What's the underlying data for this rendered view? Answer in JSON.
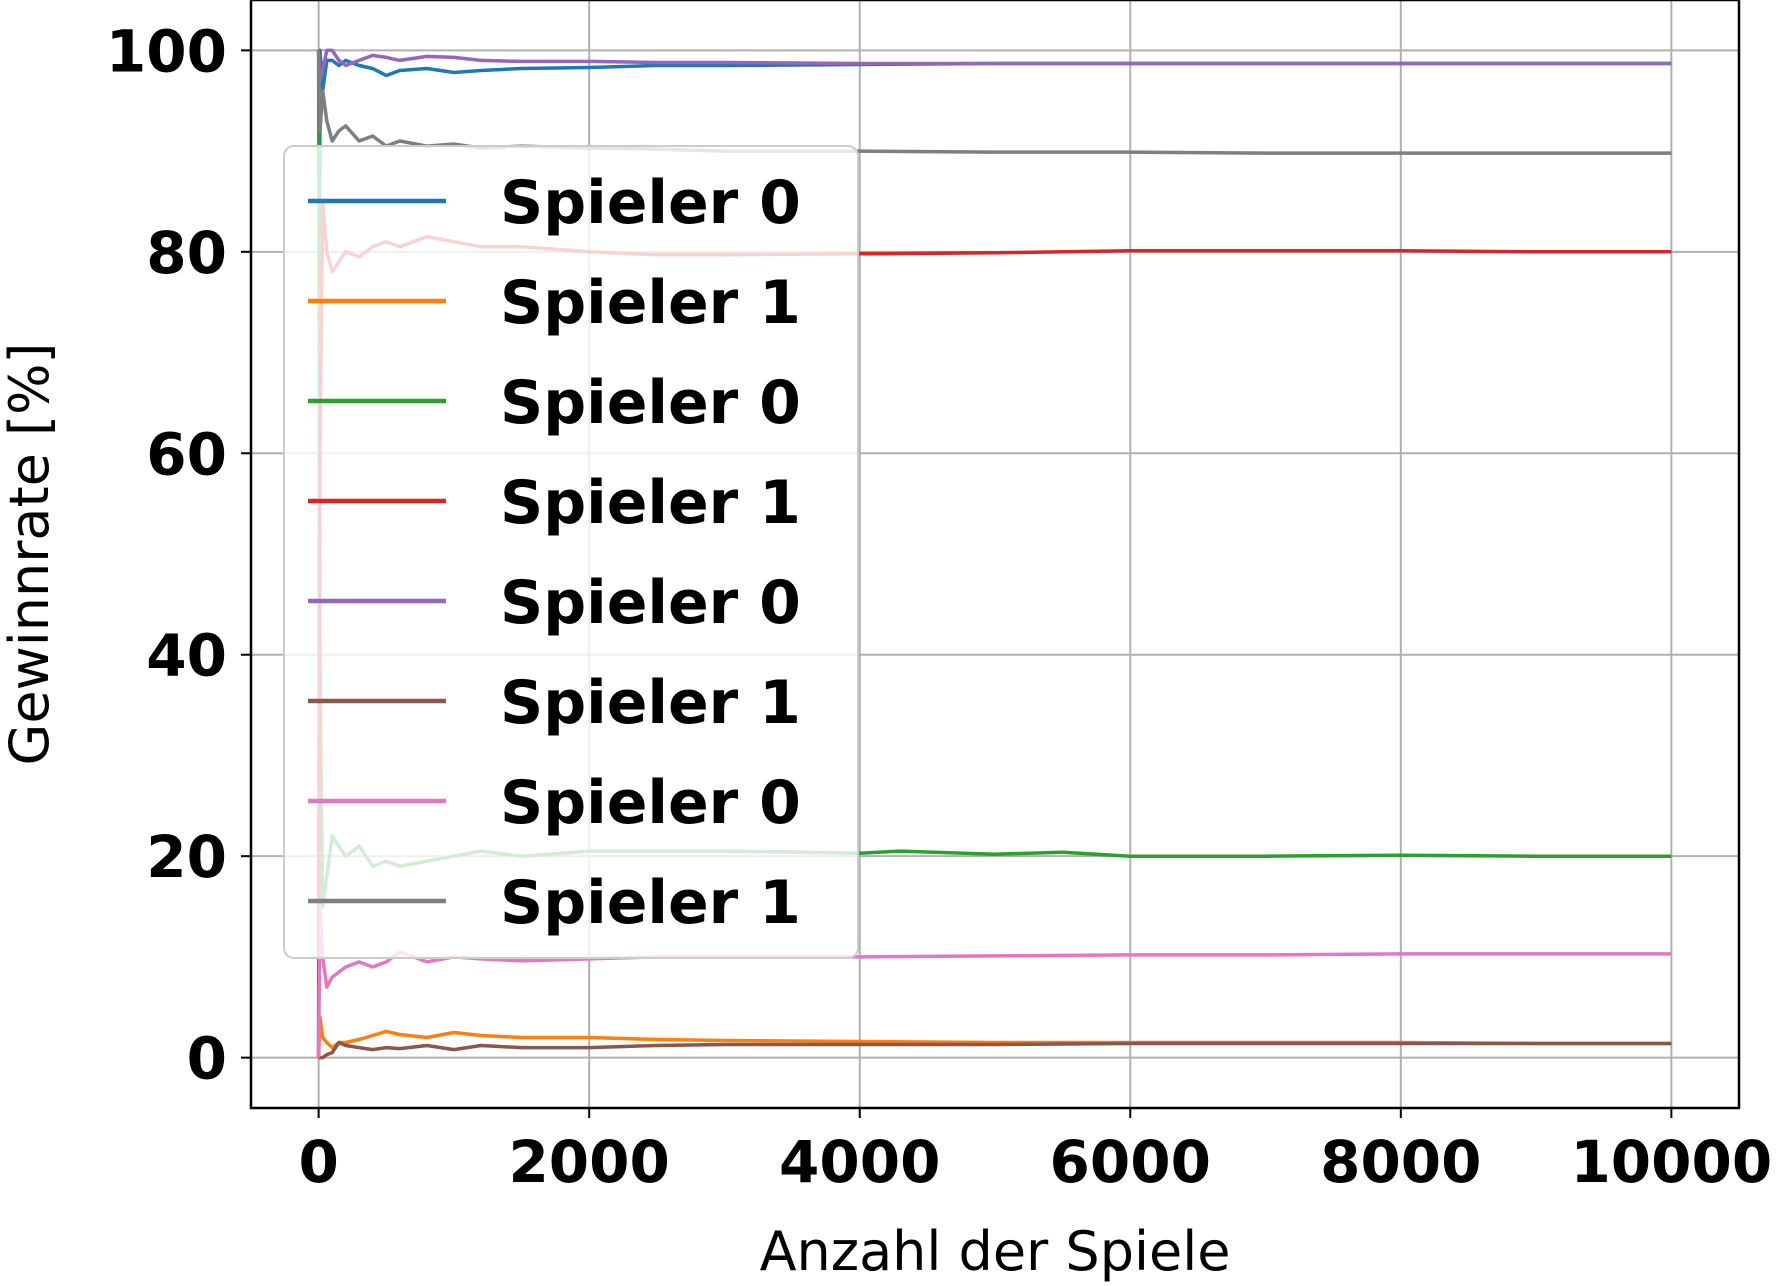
{
  "chart_data": {
    "type": "line",
    "title": "",
    "xlabel": "Anzahl der Spiele",
    "ylabel": "Gewinnrate [%]",
    "xlim": [
      -500,
      10500
    ],
    "ylim": [
      -5,
      105
    ],
    "xticks": [
      0,
      2000,
      4000,
      6000,
      8000,
      10000
    ],
    "xtick_labels": [
      "0",
      "2000",
      "4000",
      "6000",
      "8000",
      "10000"
    ],
    "yticks": [
      0,
      20,
      40,
      60,
      80,
      100
    ],
    "ytick_labels": [
      "0",
      "20",
      "40",
      "60",
      "80",
      "100"
    ],
    "grid": true,
    "legend_position": "upper-left",
    "series": [
      {
        "name": "Spieler 0",
        "color": "#1f77b4",
        "x": [
          0,
          10,
          30,
          60,
          100,
          150,
          200,
          300,
          400,
          500,
          600,
          800,
          1000,
          1200,
          1500,
          2000,
          2500,
          3000,
          4000,
          5000,
          6000,
          7000,
          8000,
          9000,
          10000
        ],
        "y": [
          0,
          100,
          96,
          99,
          99,
          98.5,
          99,
          98.5,
          98.2,
          97.5,
          98.0,
          98.2,
          97.8,
          98.0,
          98.2,
          98.3,
          98.5,
          98.5,
          98.6,
          98.7,
          98.7,
          98.7,
          98.7,
          98.7,
          98.7
        ]
      },
      {
        "name": "Spieler 1",
        "color": "#ff7f0e",
        "x": [
          0,
          10,
          30,
          60,
          100,
          150,
          200,
          300,
          400,
          500,
          600,
          800,
          1000,
          1200,
          1500,
          2000,
          2500,
          3000,
          4000,
          5000,
          6000,
          7000,
          8000,
          9000,
          10000
        ],
        "y": [
          0,
          4,
          2,
          1.5,
          1.0,
          1.5,
          1.5,
          1.8,
          2.2,
          2.6,
          2.3,
          2.0,
          2.5,
          2.2,
          2.0,
          2.0,
          1.8,
          1.7,
          1.6,
          1.5,
          1.5,
          1.5,
          1.5,
          1.4,
          1.4
        ]
      },
      {
        "name": "Spieler 0",
        "color": "#2ca02c",
        "x": [
          0,
          10,
          30,
          60,
          100,
          150,
          200,
          300,
          400,
          500,
          600,
          800,
          1000,
          1200,
          1500,
          2000,
          2500,
          3000,
          4000,
          4300,
          5000,
          5500,
          6000,
          7000,
          8000,
          9000,
          10000
        ],
        "y": [
          100,
          40,
          15,
          18,
          22,
          21,
          20,
          21,
          19,
          19.5,
          19,
          19.5,
          20,
          20.5,
          20,
          20.5,
          20.5,
          20.5,
          20.3,
          20.5,
          20.2,
          20.4,
          20.0,
          20.0,
          20.1,
          20.0,
          20.0
        ]
      },
      {
        "name": "Spieler 1",
        "color": "#d62728",
        "x": [
          0,
          10,
          30,
          60,
          100,
          150,
          200,
          300,
          400,
          500,
          600,
          800,
          1000,
          1200,
          1500,
          2000,
          2500,
          3000,
          4000,
          5000,
          6000,
          7000,
          8000,
          9000,
          10000
        ],
        "y": [
          0,
          60,
          85,
          80,
          78,
          79,
          80,
          79.5,
          80.5,
          81,
          80.5,
          81.5,
          81,
          80.5,
          80.5,
          80,
          79.7,
          79.7,
          79.8,
          79.9,
          80.1,
          80.1,
          80.1,
          80.0,
          80.0
        ]
      },
      {
        "name": "Spieler 0",
        "color": "#9467bd",
        "x": [
          0,
          10,
          30,
          60,
          100,
          150,
          200,
          300,
          400,
          500,
          600,
          800,
          1000,
          1200,
          1500,
          2000,
          2500,
          3000,
          4000,
          5000,
          6000,
          7000,
          8000,
          9000,
          10000
        ],
        "y": [
          100,
          97,
          98,
          100,
          100,
          99,
          98.5,
          99,
          99.5,
          99.3,
          99.0,
          99.4,
          99.3,
          99.0,
          98.9,
          98.9,
          98.8,
          98.8,
          98.7,
          98.7,
          98.7,
          98.7,
          98.7,
          98.7,
          98.7
        ]
      },
      {
        "name": "Spieler 1",
        "color": "#8c564b",
        "x": [
          0,
          10,
          30,
          60,
          100,
          150,
          200,
          300,
          400,
          500,
          600,
          800,
          1000,
          1200,
          1500,
          2000,
          2500,
          3000,
          4000,
          5000,
          6000,
          7000,
          8000,
          9000,
          10000
        ],
        "y": [
          0,
          0,
          0,
          0.3,
          0.5,
          1.5,
          1.2,
          1.0,
          0.8,
          1.0,
          0.9,
          1.2,
          0.8,
          1.2,
          1.0,
          1.0,
          1.2,
          1.3,
          1.3,
          1.3,
          1.4,
          1.4,
          1.4,
          1.4,
          1.4
        ]
      },
      {
        "name": "Spieler 0",
        "color": "#e377c2",
        "x": [
          0,
          10,
          30,
          60,
          100,
          150,
          200,
          300,
          400,
          500,
          600,
          800,
          1000,
          1200,
          1500,
          2000,
          2500,
          3000,
          4000,
          5000,
          6000,
          7000,
          8000,
          9000,
          10000
        ],
        "y": [
          0,
          15,
          10,
          7,
          8,
          8.5,
          9.0,
          9.5,
          9.0,
          9.5,
          10.5,
          9.5,
          10.0,
          9.8,
          9.6,
          9.8,
          10.0,
          10.0,
          10.0,
          10.1,
          10.2,
          10.2,
          10.3,
          10.3,
          10.3
        ]
      },
      {
        "name": "Spieler 1",
        "color": "#7f7f7f",
        "x": [
          0,
          10,
          30,
          60,
          100,
          150,
          200,
          300,
          400,
          500,
          600,
          800,
          1000,
          1200,
          1500,
          2000,
          2500,
          3000,
          4000,
          5000,
          6000,
          7000,
          8000,
          9000,
          10000
        ],
        "y": [
          100,
          92,
          96,
          93,
          91,
          92,
          92.5,
          91,
          91.5,
          90.5,
          91,
          90.5,
          90.7,
          90.3,
          90.5,
          90.3,
          90.2,
          90.0,
          90.0,
          89.9,
          89.9,
          89.8,
          89.8,
          89.8,
          89.8
        ]
      }
    ]
  }
}
